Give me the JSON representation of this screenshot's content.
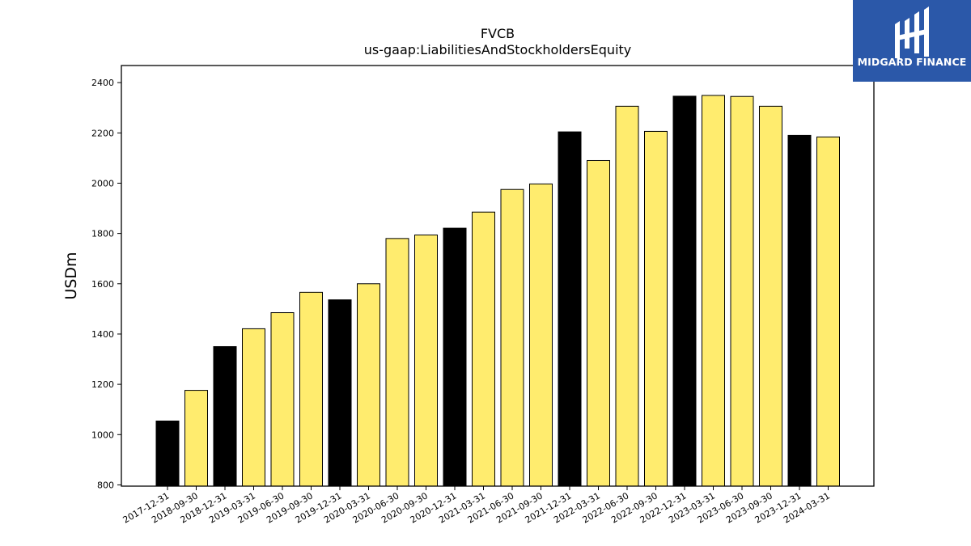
{
  "chart_data": {
    "type": "bar",
    "title": "FVCB",
    "subtitle": "us-gaap:LiabilitiesAndStockholdersEquity",
    "xlabel": "",
    "ylabel": "USDm",
    "ylim": [
      795,
      2468
    ],
    "yticks": [
      800,
      1000,
      1200,
      1400,
      1600,
      1800,
      2000,
      2200,
      2400
    ],
    "grid": false,
    "categories": [
      "2017-12-31",
      "2018-09-30",
      "2018-12-31",
      "2019-03-31",
      "2019-06-30",
      "2019-09-30",
      "2019-12-31",
      "2020-03-31",
      "2020-06-30",
      "2020-09-30",
      "2020-12-31",
      "2021-03-31",
      "2021-06-30",
      "2021-09-30",
      "2021-12-31",
      "2022-03-31",
      "2022-06-30",
      "2022-09-30",
      "2022-12-31",
      "2023-03-31",
      "2023-06-30",
      "2023-09-30",
      "2023-12-31",
      "2024-03-31"
    ],
    "values": [
      1054,
      1176,
      1350,
      1421,
      1485,
      1566,
      1536,
      1600,
      1780,
      1794,
      1821,
      1885,
      1975,
      1997,
      2204,
      2090,
      2306,
      2206,
      2346,
      2349,
      2345,
      2306,
      2190,
      2184
    ],
    "colors": [
      "#000000",
      "#ffec6e",
      "#000000",
      "#ffec6e",
      "#ffec6e",
      "#ffec6e",
      "#000000",
      "#ffec6e",
      "#ffec6e",
      "#ffec6e",
      "#000000",
      "#ffec6e",
      "#ffec6e",
      "#ffec6e",
      "#000000",
      "#ffec6e",
      "#ffec6e",
      "#ffec6e",
      "#000000",
      "#ffec6e",
      "#ffec6e",
      "#ffec6e",
      "#000000",
      "#ffec6e"
    ]
  },
  "logo": {
    "text": "MIDGARD FINANCE",
    "background": "#2b58a9"
  }
}
